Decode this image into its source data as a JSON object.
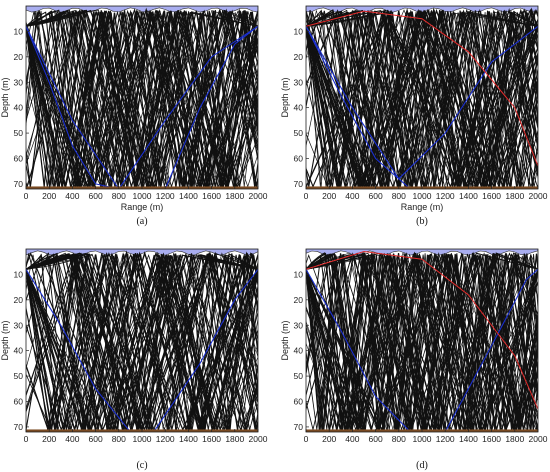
{
  "chart_data": [
    {
      "panel": "(a)",
      "type": "line",
      "xlabel": "Range (m)",
      "ylabel": "Depth (m)",
      "xlim": [
        0,
        2000
      ],
      "ylim": [
        72,
        0
      ],
      "xticks": [
        0,
        200,
        400,
        600,
        800,
        1000,
        1200,
        1400,
        1600,
        1800,
        2000
      ],
      "yticks": [
        10,
        20,
        30,
        40,
        50,
        60,
        70
      ],
      "source_depth": 8,
      "surface_color": "#a9aef0",
      "bottom_color": "#7a4a22",
      "ray_color": "#111111",
      "blue_ray_color": "#1a2fd0",
      "blue_rays": [
        {
          "x": [
            0,
            400,
            800,
            1200,
            1600,
            2000
          ],
          "y": [
            8,
            45,
            72,
            45,
            20,
            8
          ]
        },
        {
          "x": [
            0,
            200,
            400,
            600,
            800
          ],
          "y": [
            8,
            30,
            55,
            70,
            72
          ]
        },
        {
          "x": [
            1200,
            1500,
            1800,
            2000
          ],
          "y": [
            72,
            40,
            15,
            8
          ]
        }
      ],
      "red_rays": []
    },
    {
      "panel": "(b)",
      "type": "line",
      "xlabel": "Range (m)",
      "ylabel": "Depth (m)",
      "xlim": [
        0,
        2000
      ],
      "ylim": [
        72,
        0
      ],
      "xticks": [
        0,
        200,
        400,
        600,
        800,
        1000,
        1200,
        1400,
        1600,
        1800,
        2000
      ],
      "yticks": [
        10,
        20,
        30,
        40,
        50,
        60,
        70
      ],
      "source_depth": 8,
      "surface_color": "#a9aef0",
      "bottom_color": "#7a4a22",
      "ray_color": "#111111",
      "blue_ray_color": "#1a2fd0",
      "blue_rays": [
        {
          "x": [
            0,
            400,
            800,
            1200,
            1600,
            2000
          ],
          "y": [
            8,
            40,
            68,
            50,
            22,
            8
          ]
        },
        {
          "x": [
            0,
            300,
            600,
            900
          ],
          "y": [
            8,
            35,
            60,
            72
          ]
        }
      ],
      "red_rays": [
        {
          "x": [
            0,
            500,
            1000,
            1400,
            1800,
            2000
          ],
          "y": [
            8,
            2,
            5,
            18,
            40,
            63
          ]
        }
      ]
    },
    {
      "panel": "(c)",
      "type": "line",
      "xlabel": "",
      "ylabel": "Depth (m)",
      "xlim": [
        0,
        2000
      ],
      "ylim": [
        72,
        0
      ],
      "xticks": [
        0,
        200,
        400,
        600,
        800,
        1000,
        1200,
        1400,
        1600,
        1800,
        2000
      ],
      "yticks": [
        10,
        20,
        30,
        40,
        50,
        60,
        70
      ],
      "source_depth": 8,
      "surface_color": "#a9aef0",
      "bottom_color": "#7a4a22",
      "ray_color": "#111111",
      "blue_ray_color": "#1a2fd0",
      "blue_rays": [
        {
          "x": [
            0,
            300,
            600,
            900
          ],
          "y": [
            8,
            30,
            55,
            72
          ]
        },
        {
          "x": [
            1100,
            1500,
            1800,
            2000
          ],
          "y": [
            72,
            45,
            20,
            8
          ]
        }
      ],
      "red_rays": []
    },
    {
      "panel": "(d)",
      "type": "line",
      "xlabel": "",
      "ylabel": "Depth (m)",
      "xlim": [
        0,
        2000
      ],
      "ylim": [
        72,
        0
      ],
      "xticks": [
        0,
        200,
        400,
        600,
        800,
        1000,
        1200,
        1400,
        1600,
        1800,
        2000
      ],
      "yticks": [
        10,
        20,
        30,
        40,
        50,
        60,
        70
      ],
      "source_depth": 8,
      "surface_color": "#a9aef0",
      "bottom_color": "#7a4a22",
      "ray_color": "#111111",
      "blue_ray_color": "#1a2fd0",
      "blue_rays": [
        {
          "x": [
            0,
            300,
            600,
            900
          ],
          "y": [
            8,
            32,
            58,
            72
          ]
        },
        {
          "x": [
            1200,
            1600,
            1900,
            2000
          ],
          "y": [
            72,
            38,
            12,
            8
          ]
        }
      ],
      "red_rays": [
        {
          "x": [
            0,
            500,
            1000,
            1400,
            1800,
            2000
          ],
          "y": [
            8,
            1,
            4,
            18,
            42,
            63
          ]
        }
      ]
    }
  ]
}
